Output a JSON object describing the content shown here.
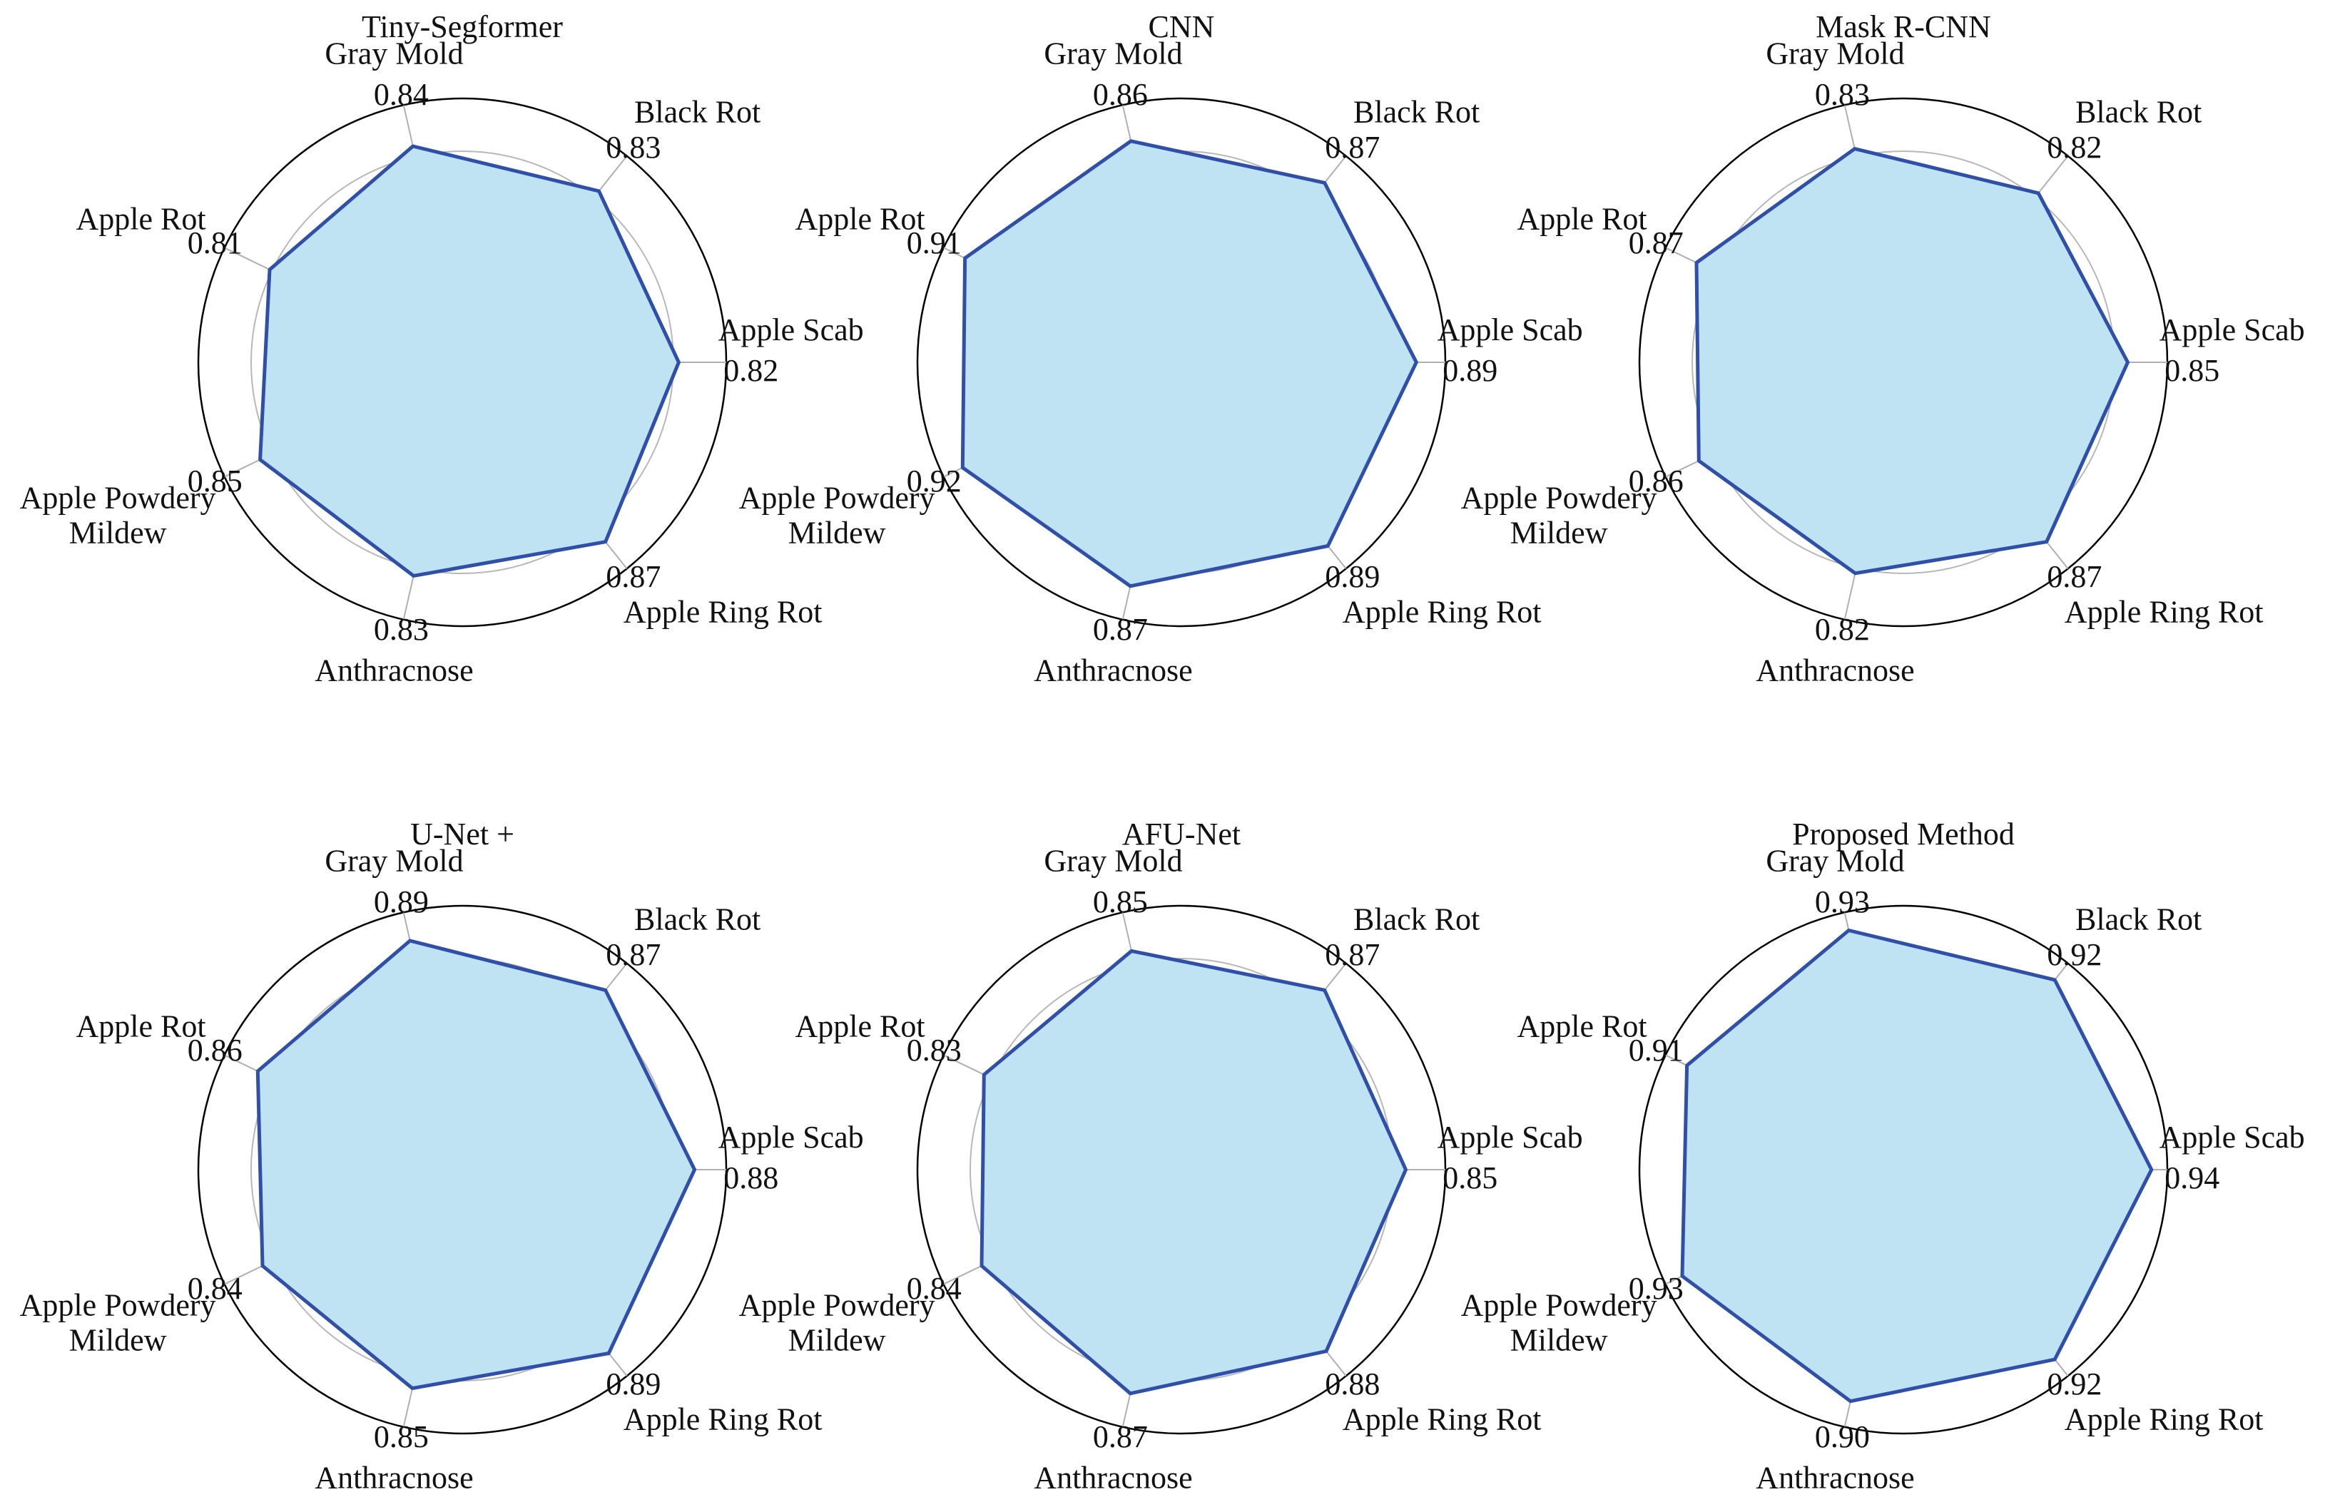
{
  "chart_data": [
    {
      "type": "radar",
      "title": "Tiny-Segformer",
      "categories": [
        "Apple Scab",
        "Black Rot",
        "Gray Mold",
        "Apple Rot",
        "Apple Powdery\nMildew",
        "Anthracnose",
        "Apple Ring Rot"
      ],
      "values": [
        0.82,
        0.83,
        0.84,
        0.81,
        0.85,
        0.83,
        0.87
      ],
      "value_labels": [
        "0.82",
        "0.83",
        "0.84",
        "0.81",
        "0.85",
        "0.83",
        "0.87"
      ],
      "color": "#2f4fa8",
      "fill": "#bfe3f3",
      "rlim": [
        0,
        1
      ],
      "rticks": [
        0.2,
        0.4,
        0.6,
        0.8
      ]
    },
    {
      "type": "radar",
      "title": "CNN",
      "categories": [
        "Apple Scab",
        "Black Rot",
        "Gray Mold",
        "Apple Rot",
        "Apple Powdery\nMildew",
        "Anthracnose",
        "Apple Ring Rot"
      ],
      "values": [
        0.89,
        0.87,
        0.86,
        0.91,
        0.92,
        0.87,
        0.89
      ],
      "value_labels": [
        "0.89",
        "0.87",
        "0.86",
        "0.91",
        "0.92",
        "0.87",
        "0.89"
      ],
      "color": "#2f4fa8",
      "fill": "#bfe3f3",
      "rlim": [
        0,
        1
      ],
      "rticks": [
        0.2,
        0.4,
        0.6,
        0.8
      ]
    },
    {
      "type": "radar",
      "title": "Mask R-CNN",
      "categories": [
        "Apple Scab",
        "Black Rot",
        "Gray Mold",
        "Apple Rot",
        "Apple Powdery\nMildew",
        "Anthracnose",
        "Apple Ring Rot"
      ],
      "values": [
        0.85,
        0.82,
        0.83,
        0.87,
        0.86,
        0.82,
        0.87
      ],
      "value_labels": [
        "0.85",
        "0.82",
        "0.83",
        "0.87",
        "0.86",
        "0.82",
        "0.87"
      ],
      "color": "#2f4fa8",
      "fill": "#bfe3f3",
      "rlim": [
        0,
        1
      ],
      "rticks": [
        0.2,
        0.4,
        0.6,
        0.8
      ]
    },
    {
      "type": "radar",
      "title": "U-Net +",
      "categories": [
        "Apple Scab",
        "Black Rot",
        "Gray Mold",
        "Apple Rot",
        "Apple Powdery\nMildew",
        "Anthracnose",
        "Apple Ring Rot"
      ],
      "values": [
        0.88,
        0.87,
        0.89,
        0.86,
        0.84,
        0.85,
        0.89
      ],
      "value_labels": [
        "0.88",
        "0.87",
        "0.89",
        "0.86",
        "0.84",
        "0.85",
        "0.89"
      ],
      "color": "#2f4fa8",
      "fill": "#bfe3f3",
      "rlim": [
        0,
        1
      ],
      "rticks": [
        0.2,
        0.4,
        0.6,
        0.8
      ]
    },
    {
      "type": "radar",
      "title": "AFU-Net",
      "categories": [
        "Apple Scab",
        "Black Rot",
        "Gray Mold",
        "Apple Rot",
        "Apple Powdery\nMildew",
        "Anthracnose",
        "Apple Ring Rot"
      ],
      "values": [
        0.85,
        0.87,
        0.85,
        0.83,
        0.84,
        0.87,
        0.88
      ],
      "value_labels": [
        "0.85",
        "0.87",
        "0.85",
        "0.83",
        "0.84",
        "0.87",
        "0.88"
      ],
      "color": "#2f4fa8",
      "fill": "#bfe3f3",
      "rlim": [
        0,
        1
      ],
      "rticks": [
        0.2,
        0.4,
        0.6,
        0.8
      ]
    },
    {
      "type": "radar",
      "title": "Proposed Method",
      "categories": [
        "Apple Scab",
        "Black Rot",
        "Gray Mold",
        "Apple Rot",
        "Apple Powdery\nMildew",
        "Anthracnose",
        "Apple Ring Rot"
      ],
      "values": [
        0.94,
        0.92,
        0.93,
        0.91,
        0.93,
        0.9,
        0.92
      ],
      "value_labels": [
        "0.94",
        "0.92",
        "0.93",
        "0.91",
        "0.93",
        "0.90",
        "0.92"
      ],
      "color": "#2f4fa8",
      "fill": "#bfe3f3",
      "rlim": [
        0,
        1
      ],
      "rticks": [
        0.2,
        0.4,
        0.6,
        0.8
      ]
    }
  ]
}
